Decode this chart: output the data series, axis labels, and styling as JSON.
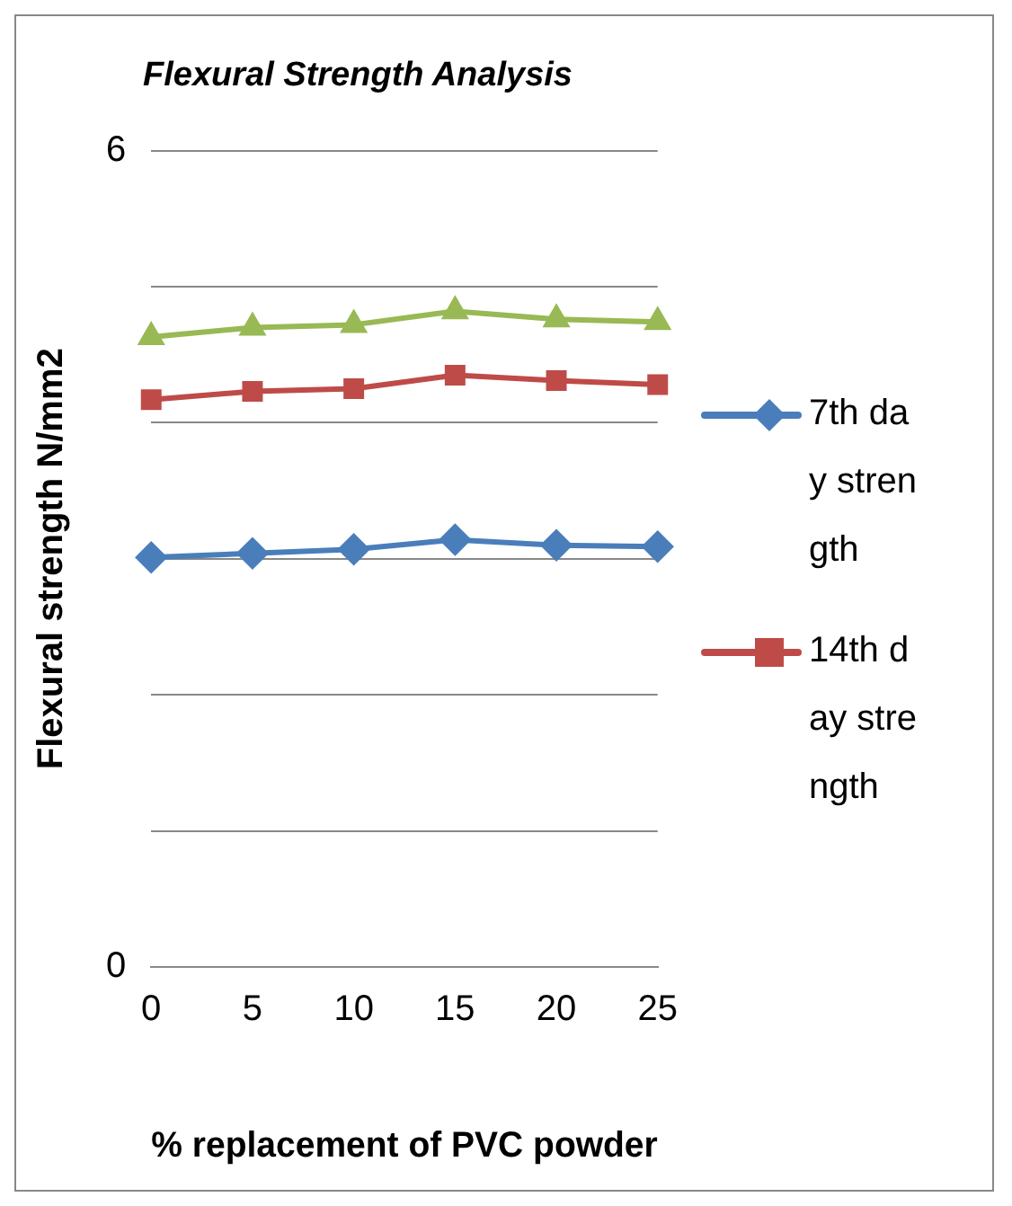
{
  "chart_data": {
    "type": "line",
    "title": "Flexural Strength Analysis",
    "xlabel": "% replacement of PVC powder",
    "ylabel": "Flexural strength N/mm2",
    "categories": [
      "0",
      "5",
      "10",
      "15",
      "20",
      "25"
    ],
    "series": [
      {
        "name": "7th day strength",
        "color": "#4a7ebb",
        "marker": "diamond",
        "values": [
          3.01,
          3.04,
          3.07,
          3.14,
          3.1,
          3.09
        ]
      },
      {
        "name": "14th day strength",
        "color": "#be4b48",
        "marker": "square",
        "values": [
          4.17,
          4.23,
          4.25,
          4.35,
          4.31,
          4.28
        ]
      },
      {
        "color": "#98b954",
        "marker": "triangle",
        "values": [
          4.63,
          4.7,
          4.72,
          4.82,
          4.76,
          4.74
        ]
      }
    ],
    "ylim": [
      0,
      6
    ],
    "yticks": [
      0,
      {
        "value": 1,
        "label": null
      },
      {
        "value": 2,
        "label": null
      },
      {
        "value": 3,
        "label": null
      },
      {
        "value": 4,
        "label": null
      },
      {
        "value": 5,
        "label": null
      },
      6
    ],
    "grid": "y",
    "legend": "right",
    "line_style": "solid"
  }
}
